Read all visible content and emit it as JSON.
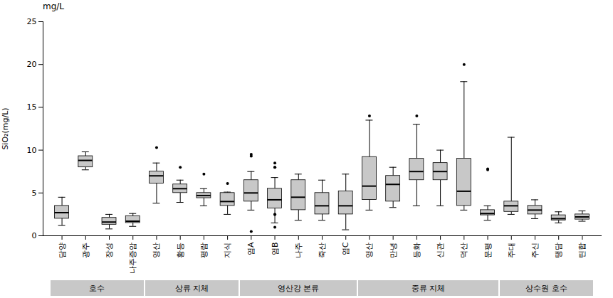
{
  "chart_data": {
    "type": "box",
    "title": "mg/L",
    "ylabel": "SiO₂(mg/L)",
    "ylim": [
      0,
      25
    ],
    "yticks": [
      0,
      5,
      10,
      15,
      20,
      25
    ],
    "color": "#c8c8c8",
    "categories": [
      "담양",
      "광주",
      "장성",
      "나주증암",
      "영산",
      "황등",
      "평람",
      "지식",
      "염A",
      "염B",
      "나주",
      "죽산",
      "염C",
      "영산",
      "만녕",
      "등화",
      "신관",
      "덕산",
      "문평",
      "주대",
      "주신",
      "탱담",
      "틴합"
    ],
    "groups": [
      {
        "name": "호수",
        "from": 0,
        "to": 3
      },
      {
        "name": "상류 지체",
        "from": 4,
        "to": 7
      },
      {
        "name": "영산강 본류",
        "from": 8,
        "to": 12
      },
      {
        "name": "중류 지체",
        "from": 13,
        "to": 18
      },
      {
        "name": "상수원 호수",
        "from": 19,
        "to": 22
      }
    ],
    "boxes": [
      {
        "med": 2.7,
        "q1": 2.0,
        "q3": 3.5,
        "whislo": 1.2,
        "whishi": 4.5,
        "fliers": []
      },
      {
        "med": 8.8,
        "q1": 8.0,
        "q3": 9.3,
        "whislo": 7.7,
        "whishi": 9.8,
        "fliers": []
      },
      {
        "med": 1.6,
        "q1": 1.3,
        "q3": 2.1,
        "whislo": 0.8,
        "whishi": 2.5,
        "fliers": []
      },
      {
        "med": 1.7,
        "q1": 1.5,
        "q3": 2.3,
        "whislo": 1.1,
        "whishi": 2.6,
        "fliers": []
      },
      {
        "med": 7.0,
        "q1": 6.1,
        "q3": 7.5,
        "whislo": 3.8,
        "whishi": 8.5,
        "fliers": [
          10.3
        ]
      },
      {
        "med": 5.5,
        "q1": 5.0,
        "q3": 6.0,
        "whislo": 3.9,
        "whishi": 6.5,
        "fliers": [
          8.0
        ]
      },
      {
        "med": 4.7,
        "q1": 4.4,
        "q3": 5.0,
        "whislo": 3.5,
        "whishi": 5.5,
        "fliers": [
          7.2
        ]
      },
      {
        "med": 4.0,
        "q1": 3.5,
        "q3": 5.0,
        "whislo": 2.5,
        "whishi": 5.1,
        "fliers": [
          6.1
        ]
      },
      {
        "med": 5.0,
        "q1": 4.0,
        "q3": 6.5,
        "whislo": 3.0,
        "whishi": 7.5,
        "fliers": [
          9.5,
          9.3,
          0.5
        ]
      },
      {
        "med": 4.2,
        "q1": 3.2,
        "q3": 5.5,
        "whislo": 1.5,
        "whishi": 6.8,
        "fliers": [
          8.0,
          8.0,
          8.5,
          2.5,
          2.5,
          1.0
        ]
      },
      {
        "med": 4.5,
        "q1": 3.0,
        "q3": 6.5,
        "whislo": 1.8,
        "whishi": 7.2,
        "fliers": []
      },
      {
        "med": 3.5,
        "q1": 2.5,
        "q3": 5.0,
        "whislo": 1.8,
        "whishi": 6.5,
        "fliers": []
      },
      {
        "med": 3.5,
        "q1": 2.5,
        "q3": 5.2,
        "whislo": 0.7,
        "whishi": 7.2,
        "fliers": []
      },
      {
        "med": 5.8,
        "q1": 4.2,
        "q3": 9.2,
        "whislo": 3.0,
        "whishi": 13.5,
        "fliers": [
          14.0
        ]
      },
      {
        "med": 6.0,
        "q1": 4.0,
        "q3": 7.0,
        "whislo": 3.3,
        "whishi": 8.0,
        "fliers": []
      },
      {
        "med": 7.5,
        "q1": 6.5,
        "q3": 9.0,
        "whislo": 3.5,
        "whishi": 13.0,
        "fliers": [
          14.0
        ]
      },
      {
        "med": 7.5,
        "q1": 6.5,
        "q3": 8.5,
        "whislo": 3.5,
        "whishi": 10.0,
        "fliers": []
      },
      {
        "med": 5.2,
        "q1": 3.5,
        "q3": 9.0,
        "whislo": 3.0,
        "whishi": 18.0,
        "fliers": [
          20.0
        ]
      },
      {
        "med": 2.6,
        "q1": 2.4,
        "q3": 3.0,
        "whislo": 1.8,
        "whishi": 3.5,
        "fliers": [
          7.8,
          7.7
        ]
      },
      {
        "med": 3.5,
        "q1": 2.8,
        "q3": 4.0,
        "whislo": 2.5,
        "whishi": 11.5,
        "fliers": []
      },
      {
        "med": 3.0,
        "q1": 2.5,
        "q3": 3.5,
        "whislo": 2.0,
        "whishi": 4.2,
        "fliers": []
      },
      {
        "med": 2.0,
        "q1": 1.8,
        "q3": 2.4,
        "whislo": 1.5,
        "whishi": 2.8,
        "fliers": []
      },
      {
        "med": 2.2,
        "q1": 1.9,
        "q3": 2.5,
        "whislo": 1.7,
        "whishi": 2.9,
        "fliers": []
      }
    ]
  }
}
